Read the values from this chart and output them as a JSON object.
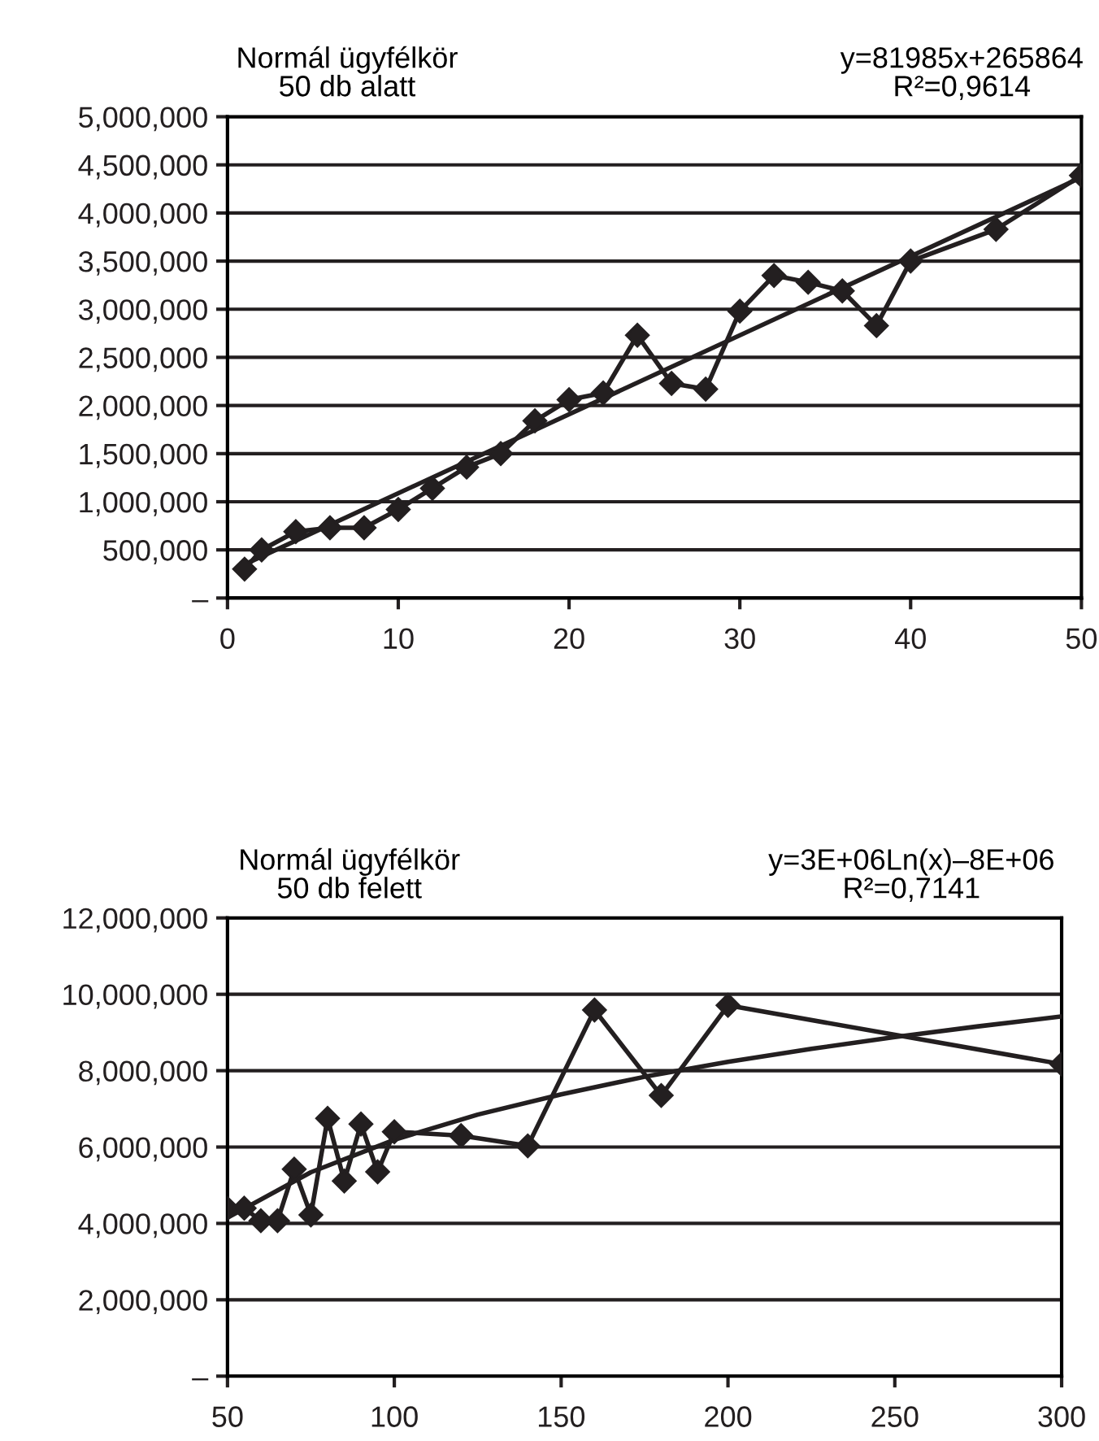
{
  "chart_data": [
    {
      "type": "line",
      "title": "Normál ügyfélkör\n50 db alatt",
      "annotations": [
        "y=81985x+265864\nR²=0,9614"
      ],
      "marker": "diamond",
      "grid": "y",
      "legend": false,
      "xlim": [
        0,
        50
      ],
      "xticks": [
        0,
        10,
        20,
        30,
        40,
        50
      ],
      "ylim": [
        0,
        5000000
      ],
      "yticks": [
        {
          "value": 0,
          "label": "–"
        },
        {
          "value": 500000,
          "label": "500,000"
        },
        {
          "value": 1000000,
          "label": "1,000,000"
        },
        {
          "value": 1500000,
          "label": "1,500,000"
        },
        {
          "value": 2000000,
          "label": "2,000,000"
        },
        {
          "value": 2500000,
          "label": "2,500,000"
        },
        {
          "value": 3000000,
          "label": "3,000,000"
        },
        {
          "value": 3500000,
          "label": "3,500,000"
        },
        {
          "value": 4000000,
          "label": "4,000,000"
        },
        {
          "value": 4500000,
          "label": "4,500,000"
        },
        {
          "value": 5000000,
          "label": "5,000,000"
        }
      ],
      "series": [
        {
          "color": "#231f20",
          "x": [
            1,
            2,
            4,
            6,
            8,
            10,
            12,
            14,
            16,
            18,
            20,
            22,
            24,
            26,
            28,
            30,
            32,
            34,
            36,
            38,
            40,
            45,
            50
          ],
          "values": [
            300000,
            500000,
            690000,
            730000,
            730000,
            920000,
            1140000,
            1360000,
            1500000,
            1840000,
            2060000,
            2130000,
            2730000,
            2230000,
            2170000,
            2980000,
            3350000,
            3280000,
            3190000,
            2830000,
            3500000,
            3830000,
            4390000
          ]
        },
        {
          "color": "#231f20",
          "marker": "none",
          "x": [
            1,
            50
          ],
          "values": [
            350000,
            4370000
          ]
        }
      ]
    },
    {
      "type": "line",
      "title": "Normál ügyfélkör\n50 db felett",
      "annotations": [
        "y=3E+06Ln(x)–8E+06\nR²=0,7141"
      ],
      "marker": "diamond",
      "grid": "y",
      "legend": false,
      "xlim": [
        50,
        300
      ],
      "xticks": [
        50,
        100,
        150,
        200,
        250,
        300
      ],
      "ylim": [
        0,
        12000000
      ],
      "yticks": [
        {
          "value": 0,
          "label": "–"
        },
        {
          "value": 2000000,
          "label": "2,000,000"
        },
        {
          "value": 4000000,
          "label": "4,000,000"
        },
        {
          "value": 6000000,
          "label": "6,000,000"
        },
        {
          "value": 8000000,
          "label": "8,000,000"
        },
        {
          "value": 10000000,
          "label": "10,000,000"
        },
        {
          "value": 12000000,
          "label": "12,000,000"
        }
      ],
      "series": [
        {
          "color": "#231f20",
          "x": [
            50,
            55,
            60,
            65,
            70,
            75,
            80,
            85,
            90,
            95,
            100,
            120,
            140,
            160,
            180,
            200,
            300
          ],
          "values": [
            4390000,
            4400000,
            4070000,
            4070000,
            5420000,
            4220000,
            6750000,
            5110000,
            6600000,
            5350000,
            6400000,
            6300000,
            6030000,
            9590000,
            7350000,
            9710000,
            8170000
          ]
        },
        {
          "color": "#231f20",
          "marker": "none",
          "x": [
            50,
            75,
            100,
            125,
            150,
            175,
            200,
            225,
            250,
            275,
            300
          ],
          "values": [
            4150000,
            5340000,
            6190000,
            6850000,
            7380000,
            7840000,
            8230000,
            8570000,
            8880000,
            9160000,
            9420000
          ]
        }
      ]
    }
  ]
}
